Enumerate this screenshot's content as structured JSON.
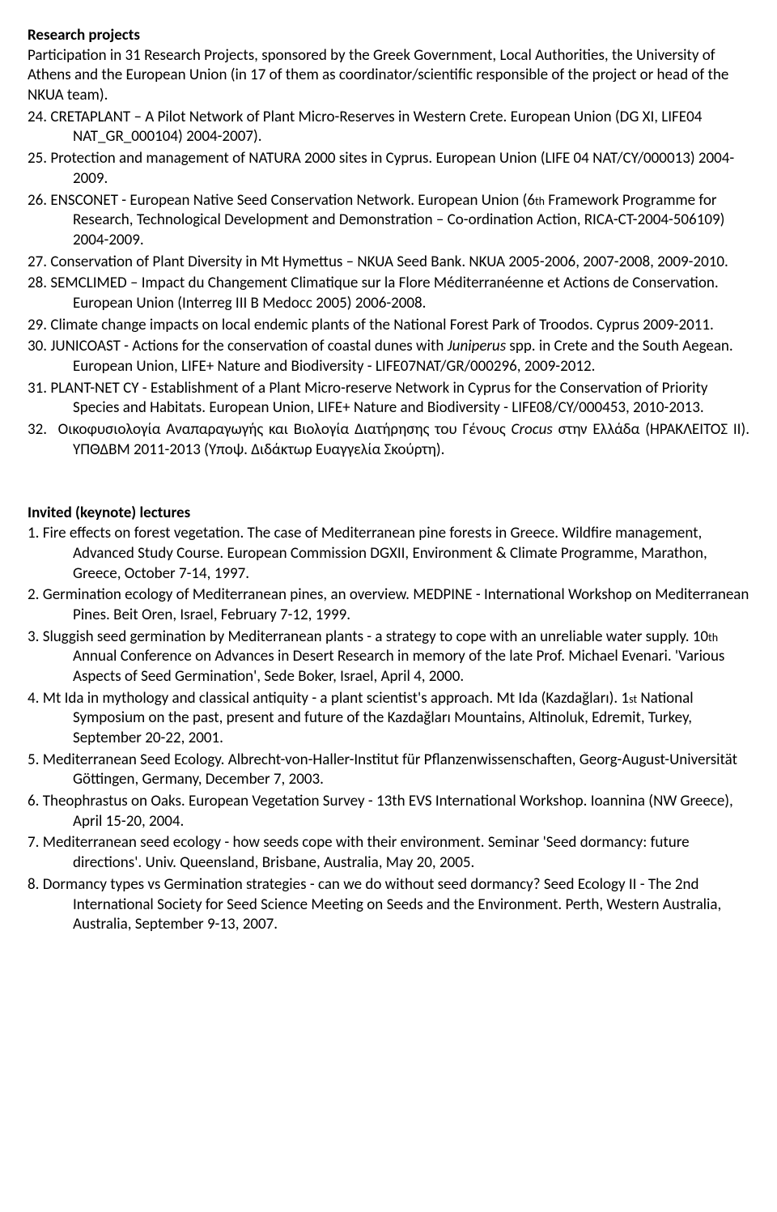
{
  "section1": {
    "title": "Research projects",
    "intro": "Participation in 31 Research Projects, sponsored by the Greek Government, Local Authorities, the University of Athens and the European Union (in 17 of them as coordinator/scientific responsible of the project or head of the NKUA team).",
    "items": [
      "24. CRETAPLANT – A Pilot Network of Plant Micro-Reserves in Western Crete. European Union (DG XI, LIFE04 NAT_GR_000104) 2004-2007).",
      "25. Protection and management of NATURA 2000 sites in Cyprus. European Union (LIFE 04 NAT/CY/000013) 2004-2009.",
      "",
      "27. Conservation of Plant Diversity in Mt Hymettus – NKUA Seed Bank. NKUA 2005-2006, 2007-2008, 2009-2010.",
      "28. SEMCLIMED – Impact du Changement Climatique sur la Flore Méditerranéenne et Actions de Conservation. European Union (Interreg III B Medocc 2005) 2006-2008.",
      "29. Climate change impacts on local endemic plants of the National Forest Park of Troodos. Cyprus 2009-2011.",
      "",
      "31. PLANT-NET CY - Establishment of a Plant Micro-reserve Network in Cyprus for the Conservation of Priority Species and Habitats. European Union, LIFE+ Nature and Biodiversity - LIFE08/CY/000453, 2010-2013.",
      ""
    ]
  },
  "section2": {
    "title": "Invited (keynote) lectures",
    "items": [
      "1. Fire effects on forest vegetation. The case of Mediterranean pine forests in Greece. Wildfire management, Advanced Study Course. European Commission DGXII, Environment & Climate Programme, Marathon, Greece, October 7-14, 1997.",
      "2. Germination ecology of Mediterranean pines, an overview. MEDPINE - International Workshop on Mediterranean Pines. Beit Oren, Israel, February 7-12, 1999.",
      "",
      "",
      "5. Mediterranean Seed Ecology. Albrecht-von-Haller-Institut für Pflanzenwissenschaften, Georg-August-Universität Göttingen, Germany, December 7, 2003.",
      "6. Theophrastus on Oaks. European Vegetation Survey - 13th EVS International Workshop. Ioannina (NW Greece), April 15-20, 2004.",
      "7. Mediterranean seed ecology - how seeds cope with their environment. Seminar 'Seed dormancy: future directions'. Univ. Queensland, Brisbane, Australia, May 20, 2005.",
      "8. Dormancy types vs Germination strategies - can we do without seed dormancy? Seed Ecology II - The 2nd International Society for Seed Science Meeting on Seeds and the Environment. Perth, Western Australia, Australia, September 9-13, 2007."
    ]
  }
}
